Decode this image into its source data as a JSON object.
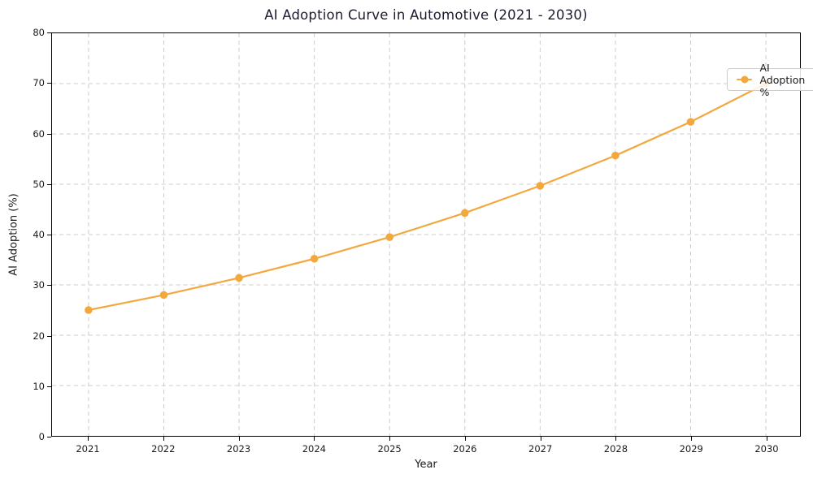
{
  "chart_data": {
    "type": "line",
    "title": "AI Adoption Curve in Automotive (2021 - 2030)",
    "xlabel": "Year",
    "ylabel": "AI Adoption (%)",
    "x": [
      2021,
      2022,
      2023,
      2024,
      2025,
      2026,
      2027,
      2028,
      2029,
      2030
    ],
    "series": [
      {
        "name": "AI Adoption %",
        "values": [
          25.0,
          28.0,
          31.4,
          35.2,
          39.5,
          44.3,
          49.7,
          55.7,
          62.4,
          70.0
        ]
      }
    ],
    "ylim": [
      0,
      80
    ],
    "yticks": [
      0,
      10,
      20,
      30,
      40,
      50,
      60,
      70,
      80
    ],
    "grid": true,
    "grid_style": "dashed",
    "legend_position": "upper right",
    "colors": {
      "line": "#f3a83d",
      "grid": "#cccccc",
      "text": "#1a1a1a",
      "spine": "#000000"
    }
  }
}
